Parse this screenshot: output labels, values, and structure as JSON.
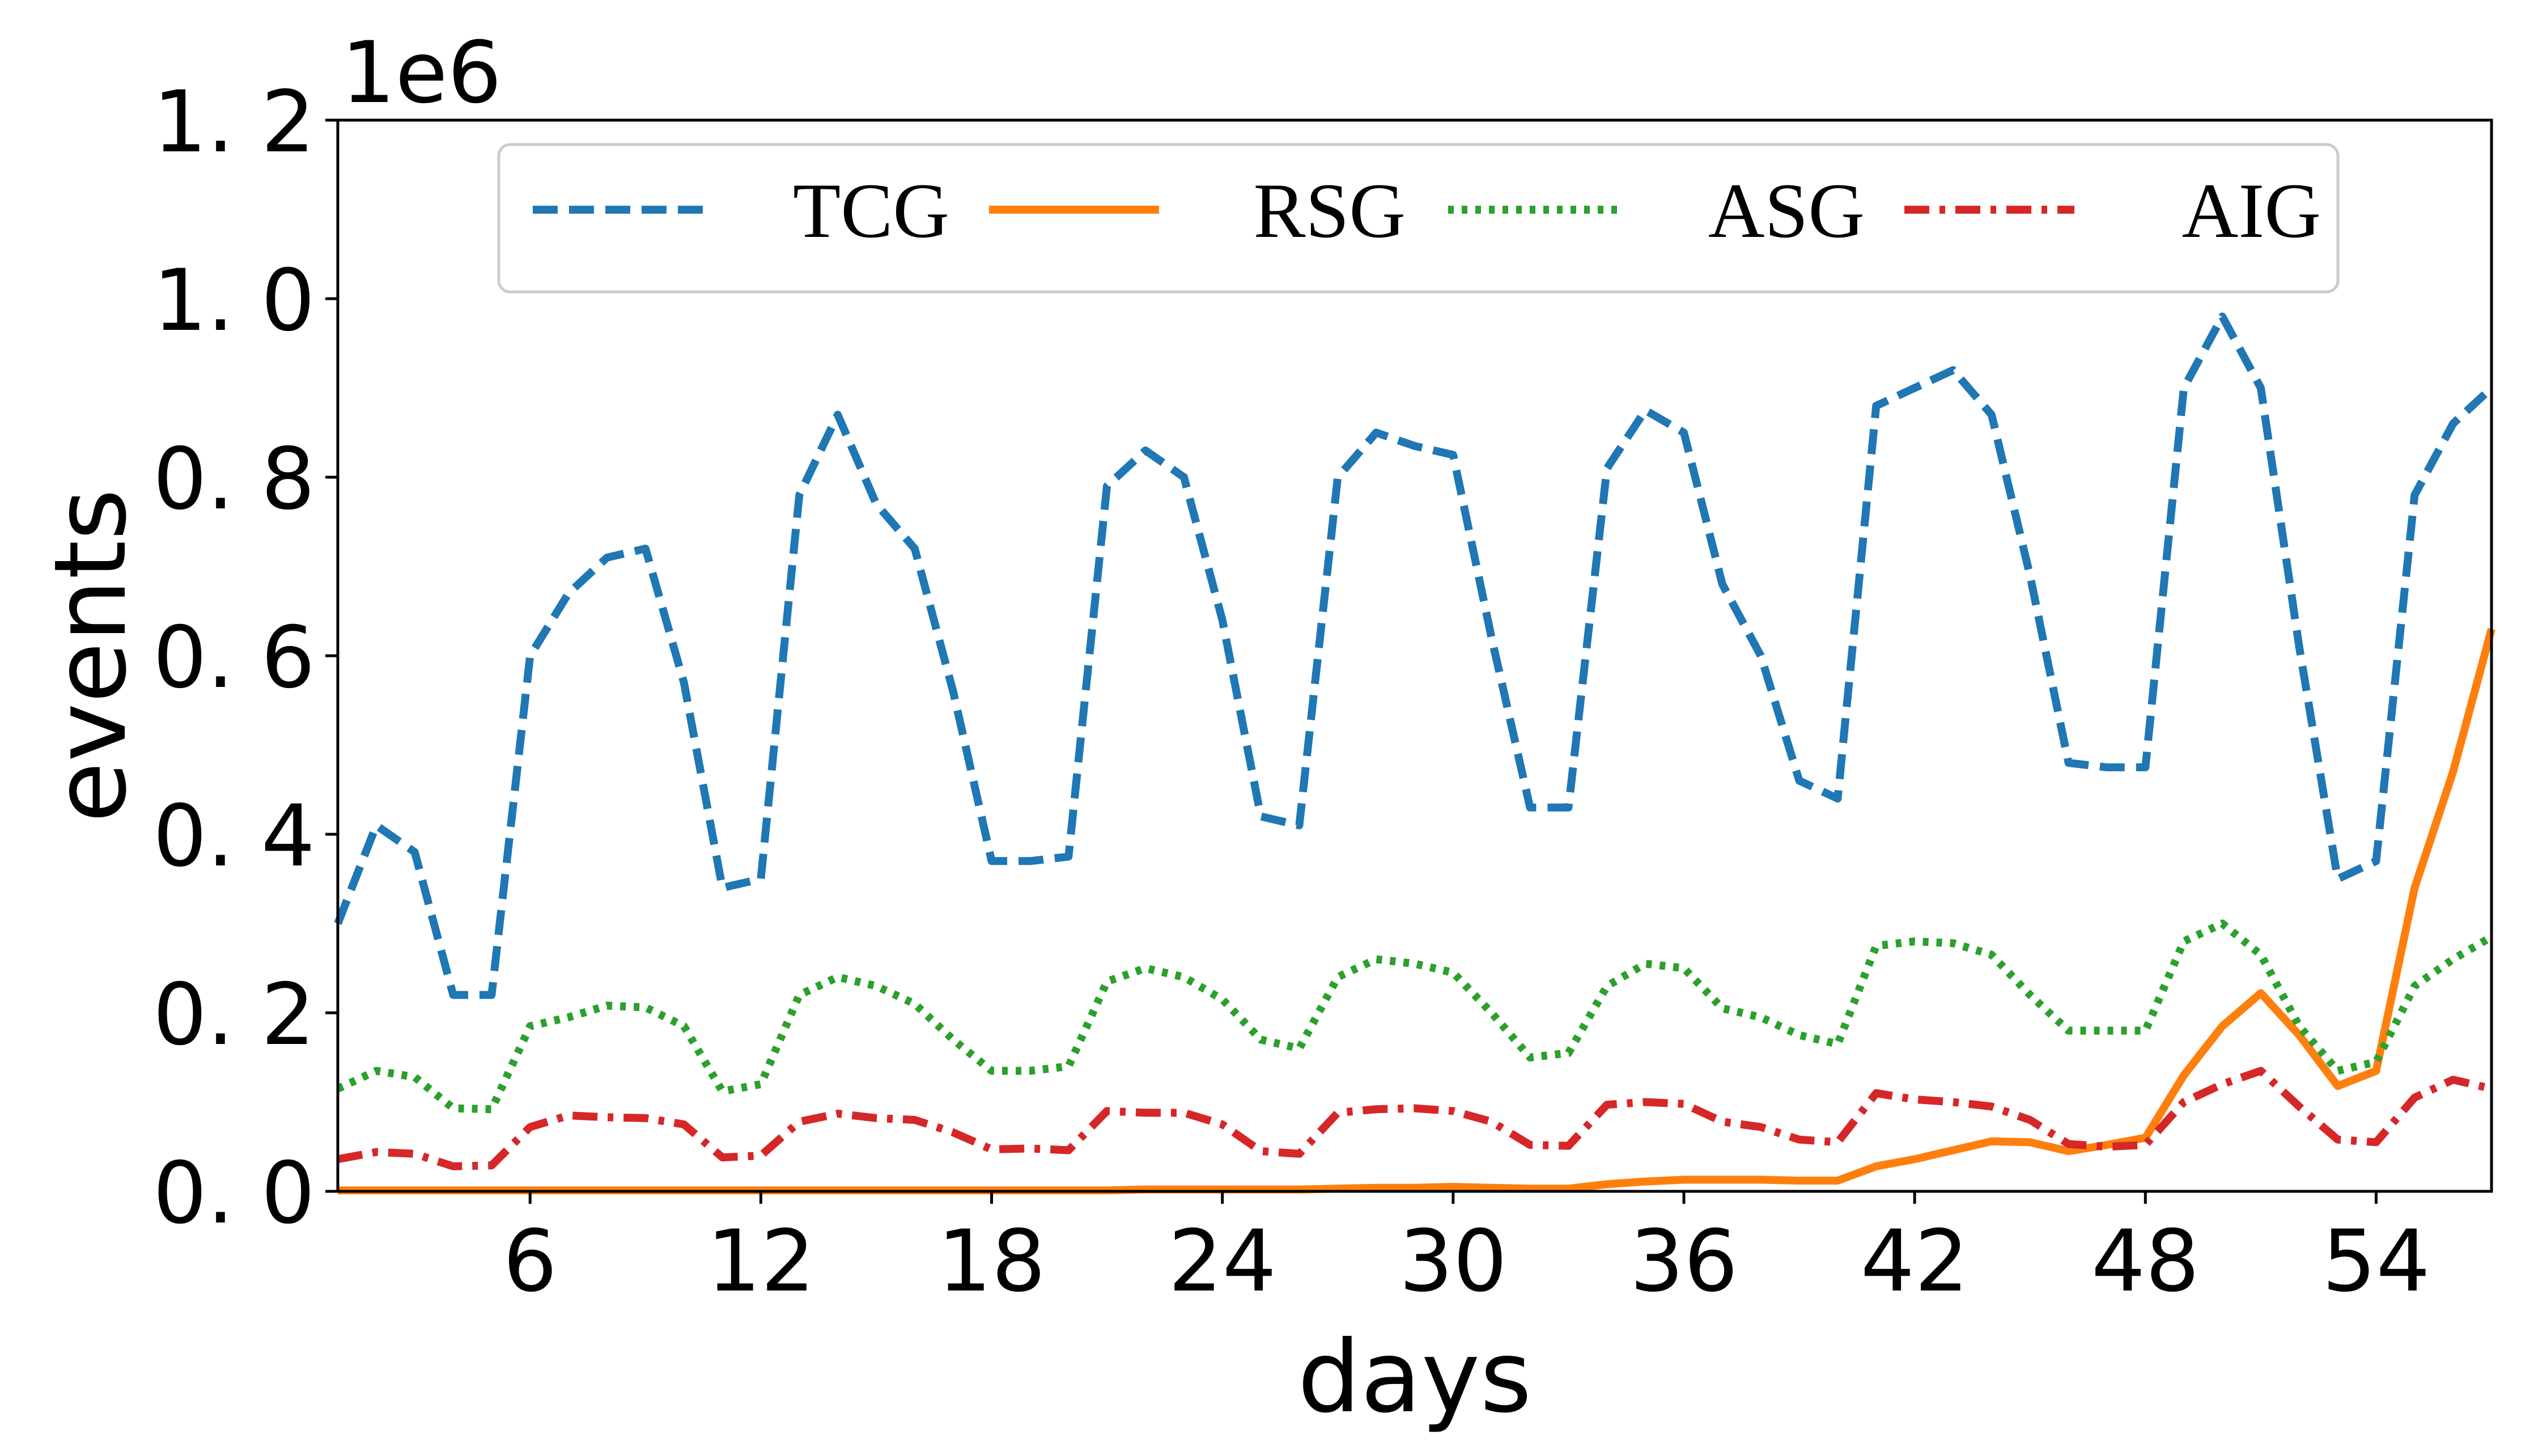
{
  "chart_data": {
    "type": "line",
    "xlabel": "days",
    "ylabel": "events",
    "y_multiplier": "1e6",
    "xlim": [
      1,
      57
    ],
    "ylim": [
      0,
      1.2
    ],
    "xticks": [
      6,
      12,
      18,
      24,
      30,
      36,
      42,
      48,
      54
    ],
    "xtick_labels": [
      "6",
      "12",
      "18",
      "24",
      "30",
      "36",
      "42",
      "48",
      "54"
    ],
    "yticks": [
      0.0,
      0.2,
      0.4,
      0.6,
      0.8,
      1.0,
      1.2
    ],
    "ytick_labels": [
      "0. 0",
      "0. 2",
      "0. 4",
      "0. 6",
      "0. 8",
      "1. 0",
      "1. 2"
    ],
    "grid": false,
    "legend_position": "top",
    "x": [
      1,
      2,
      3,
      4,
      5,
      6,
      7,
      8,
      9,
      10,
      11,
      12,
      13,
      14,
      15,
      16,
      17,
      18,
      19,
      20,
      21,
      22,
      23,
      24,
      25,
      26,
      27,
      28,
      29,
      30,
      31,
      32,
      33,
      34,
      35,
      36,
      37,
      38,
      39,
      40,
      41,
      42,
      43,
      44,
      45,
      46,
      47,
      48,
      49,
      50,
      51,
      52,
      53,
      54,
      55,
      56,
      57
    ],
    "series": [
      {
        "name": "TCG",
        "color": "#1f77b4",
        "style": "dashed",
        "values": [
          0.3,
          0.41,
          0.38,
          0.22,
          0.22,
          0.6,
          0.67,
          0.71,
          0.72,
          0.57,
          0.34,
          0.35,
          0.78,
          0.87,
          0.77,
          0.72,
          0.56,
          0.37,
          0.37,
          0.375,
          0.79,
          0.83,
          0.8,
          0.64,
          0.42,
          0.41,
          0.8,
          0.85,
          0.835,
          0.825,
          0.62,
          0.43,
          0.43,
          0.81,
          0.875,
          0.85,
          0.68,
          0.6,
          0.46,
          0.44,
          0.88,
          0.9,
          0.92,
          0.87,
          0.69,
          0.48,
          0.475,
          0.475,
          0.9,
          0.98,
          0.9,
          0.61,
          0.35,
          0.37,
          0.78,
          0.86,
          0.9
        ]
      },
      {
        "name": "RSG",
        "color": "#ff7f0e",
        "style": "solid",
        "values": [
          0.001,
          0.001,
          0.001,
          0.001,
          0.001,
          0.001,
          0.001,
          0.001,
          0.001,
          0.001,
          0.001,
          0.001,
          0.001,
          0.001,
          0.001,
          0.001,
          0.001,
          0.001,
          0.001,
          0.001,
          0.001,
          0.002,
          0.002,
          0.002,
          0.002,
          0.002,
          0.003,
          0.004,
          0.004,
          0.005,
          0.004,
          0.003,
          0.003,
          0.008,
          0.011,
          0.013,
          0.013,
          0.013,
          0.012,
          0.012,
          0.028,
          0.036,
          0.046,
          0.056,
          0.055,
          0.045,
          0.052,
          0.06,
          0.13,
          0.185,
          0.222,
          0.175,
          0.118,
          0.135,
          0.34,
          0.47,
          0.63
        ]
      },
      {
        "name": "ASG",
        "color": "#2ca02c",
        "style": "dotted",
        "values": [
          0.115,
          0.135,
          0.128,
          0.093,
          0.092,
          0.185,
          0.195,
          0.208,
          0.206,
          0.185,
          0.112,
          0.12,
          0.22,
          0.24,
          0.23,
          0.21,
          0.17,
          0.135,
          0.135,
          0.14,
          0.235,
          0.25,
          0.24,
          0.215,
          0.17,
          0.16,
          0.24,
          0.26,
          0.255,
          0.245,
          0.2,
          0.15,
          0.155,
          0.23,
          0.255,
          0.25,
          0.205,
          0.195,
          0.175,
          0.165,
          0.275,
          0.28,
          0.278,
          0.265,
          0.22,
          0.18,
          0.18,
          0.18,
          0.28,
          0.3,
          0.265,
          0.185,
          0.135,
          0.145,
          0.23,
          0.26,
          0.285
        ]
      },
      {
        "name": "AIG",
        "color": "#d62728",
        "style": "dashdot",
        "values": [
          0.036,
          0.044,
          0.042,
          0.028,
          0.029,
          0.072,
          0.085,
          0.083,
          0.082,
          0.075,
          0.038,
          0.04,
          0.078,
          0.087,
          0.082,
          0.08,
          0.066,
          0.047,
          0.048,
          0.046,
          0.09,
          0.088,
          0.088,
          0.075,
          0.045,
          0.042,
          0.088,
          0.092,
          0.093,
          0.09,
          0.078,
          0.052,
          0.051,
          0.097,
          0.1,
          0.098,
          0.078,
          0.072,
          0.058,
          0.055,
          0.11,
          0.103,
          0.1,
          0.095,
          0.08,
          0.053,
          0.05,
          0.052,
          0.1,
          0.12,
          0.135,
          0.095,
          0.058,
          0.055,
          0.105,
          0.125,
          0.115
        ]
      }
    ]
  }
}
